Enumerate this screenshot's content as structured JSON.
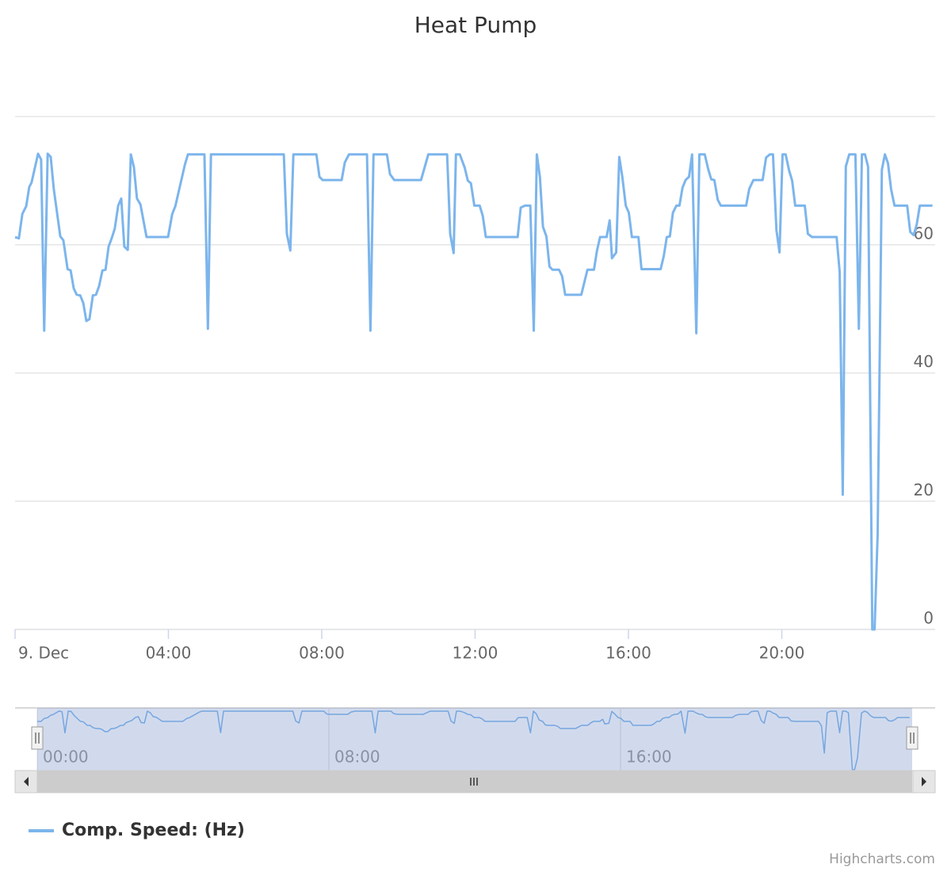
{
  "chart_data": {
    "type": "line",
    "title": "Heat Pump",
    "x": [
      0,
      0.1,
      0.19,
      0.29,
      0.37,
      0.43,
      0.6,
      0.68,
      0.76,
      0.85,
      0.93,
      1.01,
      1.18,
      1.26,
      1.37,
      1.45,
      1.53,
      1.61,
      1.7,
      1.78,
      1.86,
      1.94,
      2.03,
      2.11,
      2.19,
      2.28,
      2.36,
      2.44,
      2.52,
      2.6,
      2.69,
      2.77,
      2.85,
      2.94,
      3.02,
      3.1,
      3.18,
      3.27,
      3.43,
      3.99,
      4.1,
      4.18,
      4.43,
      4.51,
      4.94,
      5.03,
      5.11,
      7.01,
      7.09,
      7.18,
      7.26,
      7.86,
      7.94,
      8.02,
      8.52,
      8.6,
      8.71,
      9.18,
      9.27,
      9.35,
      9.7,
      9.78,
      9.89,
      10.59,
      10.78,
      11.27,
      11.35,
      11.44,
      11.5,
      11.6,
      11.73,
      11.81,
      11.89,
      11.98,
      12.12,
      12.2,
      12.28,
      13.11,
      13.19,
      13.3,
      13.44,
      13.53,
      13.61,
      13.69,
      13.77,
      13.86,
      13.94,
      14.02,
      14.19,
      14.27,
      14.35,
      14.77,
      14.93,
      15.1,
      15.18,
      15.26,
      15.43,
      15.51,
      15.57,
      15.68,
      15.76,
      15.84,
      15.93,
      16.01,
      16.09,
      16.26,
      16.34,
      16.84,
      16.92,
      17.0,
      17.08,
      17.16,
      17.25,
      17.33,
      17.41,
      17.49,
      17.58,
      17.66,
      17.77,
      17.85,
      17.99,
      18.08,
      18.16,
      18.24,
      18.33,
      18.41,
      19.07,
      19.15,
      19.26,
      19.5,
      19.59,
      19.69,
      19.77,
      19.86,
      19.94,
      20.02,
      20.1,
      20.19,
      20.27,
      20.35,
      20.6,
      20.68,
      20.79,
      21.43,
      21.51,
      21.59,
      21.67,
      21.76,
      21.92,
      22.01,
      22.09,
      22.17,
      22.25,
      22.36,
      22.42,
      22.5,
      22.61,
      22.69,
      22.77,
      22.85,
      22.94,
      23.27,
      23.35,
      23.44,
      23.52,
      23.6,
      23.93
    ],
    "series": [
      {
        "name": "Comp. Speed: (Hz)",
        "color": "#7cb5ec",
        "values": [
          61.2,
          61,
          64.8,
          66,
          69,
          69.7,
          74.2,
          73.3,
          46.6,
          74.2,
          73.7,
          68.7,
          61.3,
          60.7,
          56.2,
          56,
          53.2,
          52.2,
          52.1,
          50.9,
          48.1,
          48.4,
          52.1,
          52.2,
          53.5,
          56,
          56.1,
          59.7,
          61,
          62.5,
          66.1,
          67.2,
          59.7,
          59.2,
          74.1,
          72.1,
          67.2,
          66.3,
          61.2,
          61.2,
          64.8,
          66,
          72.5,
          74.1,
          74.1,
          46.9,
          74.1,
          74.1,
          61.7,
          59.1,
          74.1,
          74.1,
          70.6,
          70.1,
          70.1,
          72.8,
          74.1,
          74.1,
          46.6,
          74.1,
          74.1,
          71,
          70.1,
          70.1,
          74.1,
          74.1,
          61.7,
          58.7,
          74.1,
          74.1,
          72,
          70,
          69.6,
          66.1,
          66.1,
          64.5,
          61.2,
          61.2,
          65.8,
          66.1,
          66.1,
          46.6,
          74.1,
          70.6,
          62.8,
          61.3,
          56.6,
          56.1,
          56.1,
          55.1,
          52.2,
          52.2,
          56.1,
          56.1,
          59.1,
          61.2,
          61.2,
          63.8,
          57.9,
          58.8,
          73.7,
          70.6,
          66.1,
          65,
          61.2,
          61.2,
          56.2,
          56.2,
          58.2,
          61.2,
          61.3,
          65,
          66.1,
          66.1,
          68.9,
          70.1,
          70.6,
          74.1,
          46.2,
          74.1,
          74.1,
          71.8,
          70.2,
          70.1,
          67,
          66.1,
          66.1,
          68.7,
          70.1,
          70.1,
          73.6,
          74.1,
          74.1,
          62.3,
          58.8,
          74.1,
          74.1,
          71.6,
          70,
          66.1,
          66.1,
          61.7,
          61.2,
          61.2,
          55.7,
          21,
          72.2,
          74.1,
          74.1,
          46.9,
          74.1,
          74.1,
          72.2,
          0,
          0,
          14.8,
          71.7,
          74.1,
          72.7,
          68.7,
          66.1,
          66.1,
          62,
          61.5,
          63.2,
          66.1,
          66.1
        ]
      }
    ],
    "xlim": [
      0,
      24
    ],
    "xticks": [
      {
        "value": 0,
        "label": "9. Dec"
      },
      {
        "value": 4,
        "label": "04:00"
      },
      {
        "value": 8,
        "label": "08:00"
      },
      {
        "value": 12,
        "label": "12:00"
      },
      {
        "value": 16,
        "label": "16:00"
      },
      {
        "value": 20,
        "label": "20:00"
      }
    ],
    "ylim": [
      0,
      80
    ],
    "yticks": [
      0,
      20,
      40,
      60
    ],
    "grid": true,
    "navigator_xticks": [
      {
        "value": 0,
        "label": "00:00"
      },
      {
        "value": 8,
        "label": "08:00"
      },
      {
        "value": 16,
        "label": "16:00"
      }
    ],
    "credits": "Highcharts.com"
  }
}
